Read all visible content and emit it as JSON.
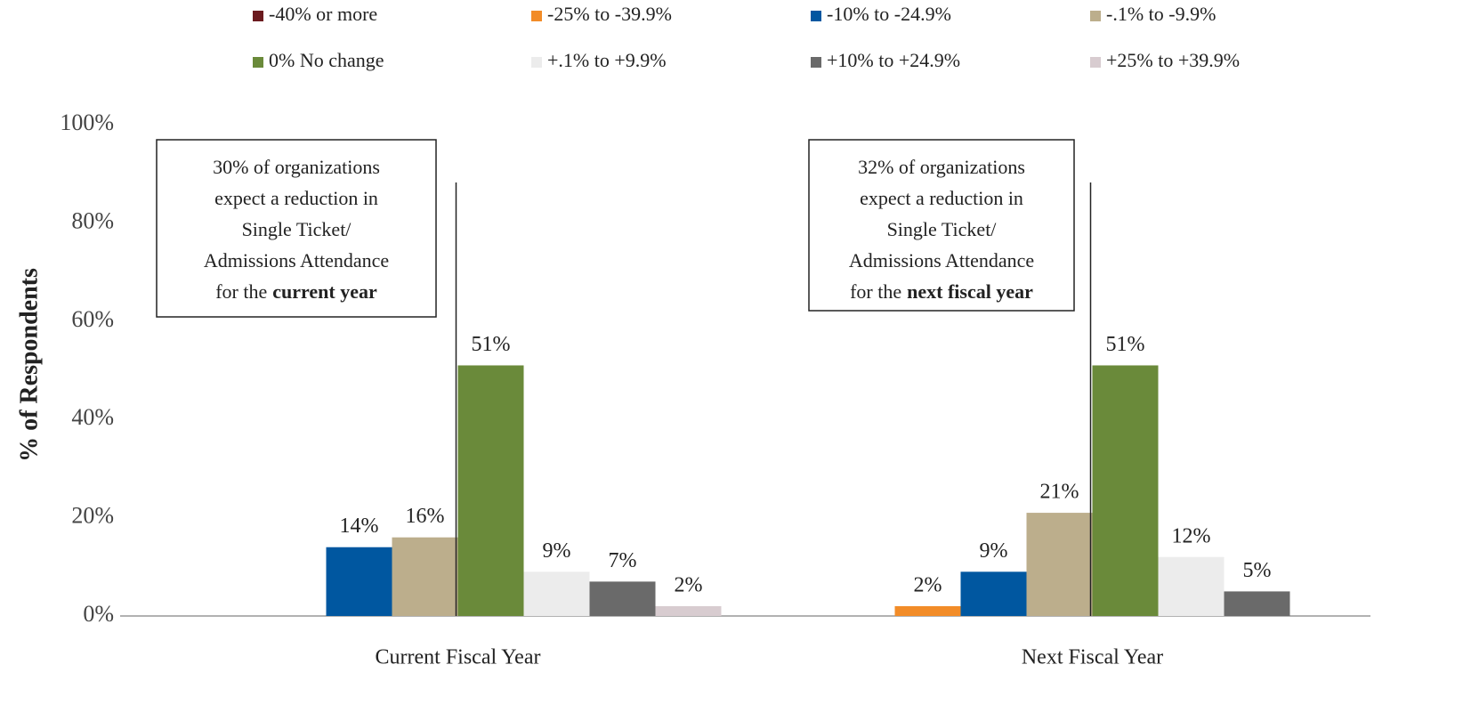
{
  "chart_data": {
    "type": "bar",
    "ylabel": "% of Respondents",
    "categories": [
      "Current Fiscal Year",
      "Next Fiscal Year"
    ],
    "series": [
      {
        "name": "-40% or more",
        "color": "#6b1a1f",
        "values": [
          null,
          null
        ],
        "value_labels": [
          null,
          null
        ]
      },
      {
        "name": "-25% to -39.9%",
        "color": "#f28c28",
        "values": [
          null,
          2
        ],
        "value_labels": [
          null,
          "2%"
        ]
      },
      {
        "name": "-10% to -24.9%",
        "color": "#0057a0",
        "values": [
          14,
          9
        ],
        "value_labels": [
          "14%",
          "9%"
        ]
      },
      {
        "name": "-.1% to -9.9%",
        "color": "#bcae8c",
        "values": [
          16,
          21
        ],
        "value_labels": [
          "16%",
          "21%"
        ]
      },
      {
        "name": "0% No change",
        "color": "#6a8a3a",
        "values": [
          51,
          51
        ],
        "value_labels": [
          "51%",
          "51%"
        ]
      },
      {
        "name": "+.1% to +9.9%",
        "color": "#ececec",
        "values": [
          9,
          12
        ],
        "value_labels": [
          "9%",
          "12%"
        ]
      },
      {
        "name": "+10% to +24.9%",
        "color": "#6a6a6a",
        "values": [
          7,
          5
        ],
        "value_labels": [
          "7%",
          "5%"
        ]
      },
      {
        "name": "+25% to +39.9%",
        "color": "#d8ccd0",
        "values": [
          2,
          null
        ],
        "value_labels": [
          "2%",
          null
        ]
      }
    ],
    "ylim": [
      0,
      100
    ],
    "yticks": [
      {
        "value": 0,
        "label": "0%"
      },
      {
        "value": 20,
        "label": "20%"
      },
      {
        "value": 40,
        "label": "40%"
      },
      {
        "value": 60,
        "label": "60%"
      },
      {
        "value": 80,
        "label": "80%"
      },
      {
        "value": 100,
        "label": "100%"
      }
    ],
    "legend": "top",
    "annotations": [
      {
        "lines": [
          "30% of organizations",
          "expect a reduction in",
          "Single Ticket/",
          "Admissions Attendance"
        ],
        "last_line": [
          "for the",
          "current year"
        ]
      },
      {
        "lines": [
          "32% of organizations",
          "expect a reduction in",
          "Single Ticket/",
          "Admissions Attendance"
        ],
        "last_line": [
          "for the",
          "next fiscal year"
        ]
      }
    ]
  }
}
